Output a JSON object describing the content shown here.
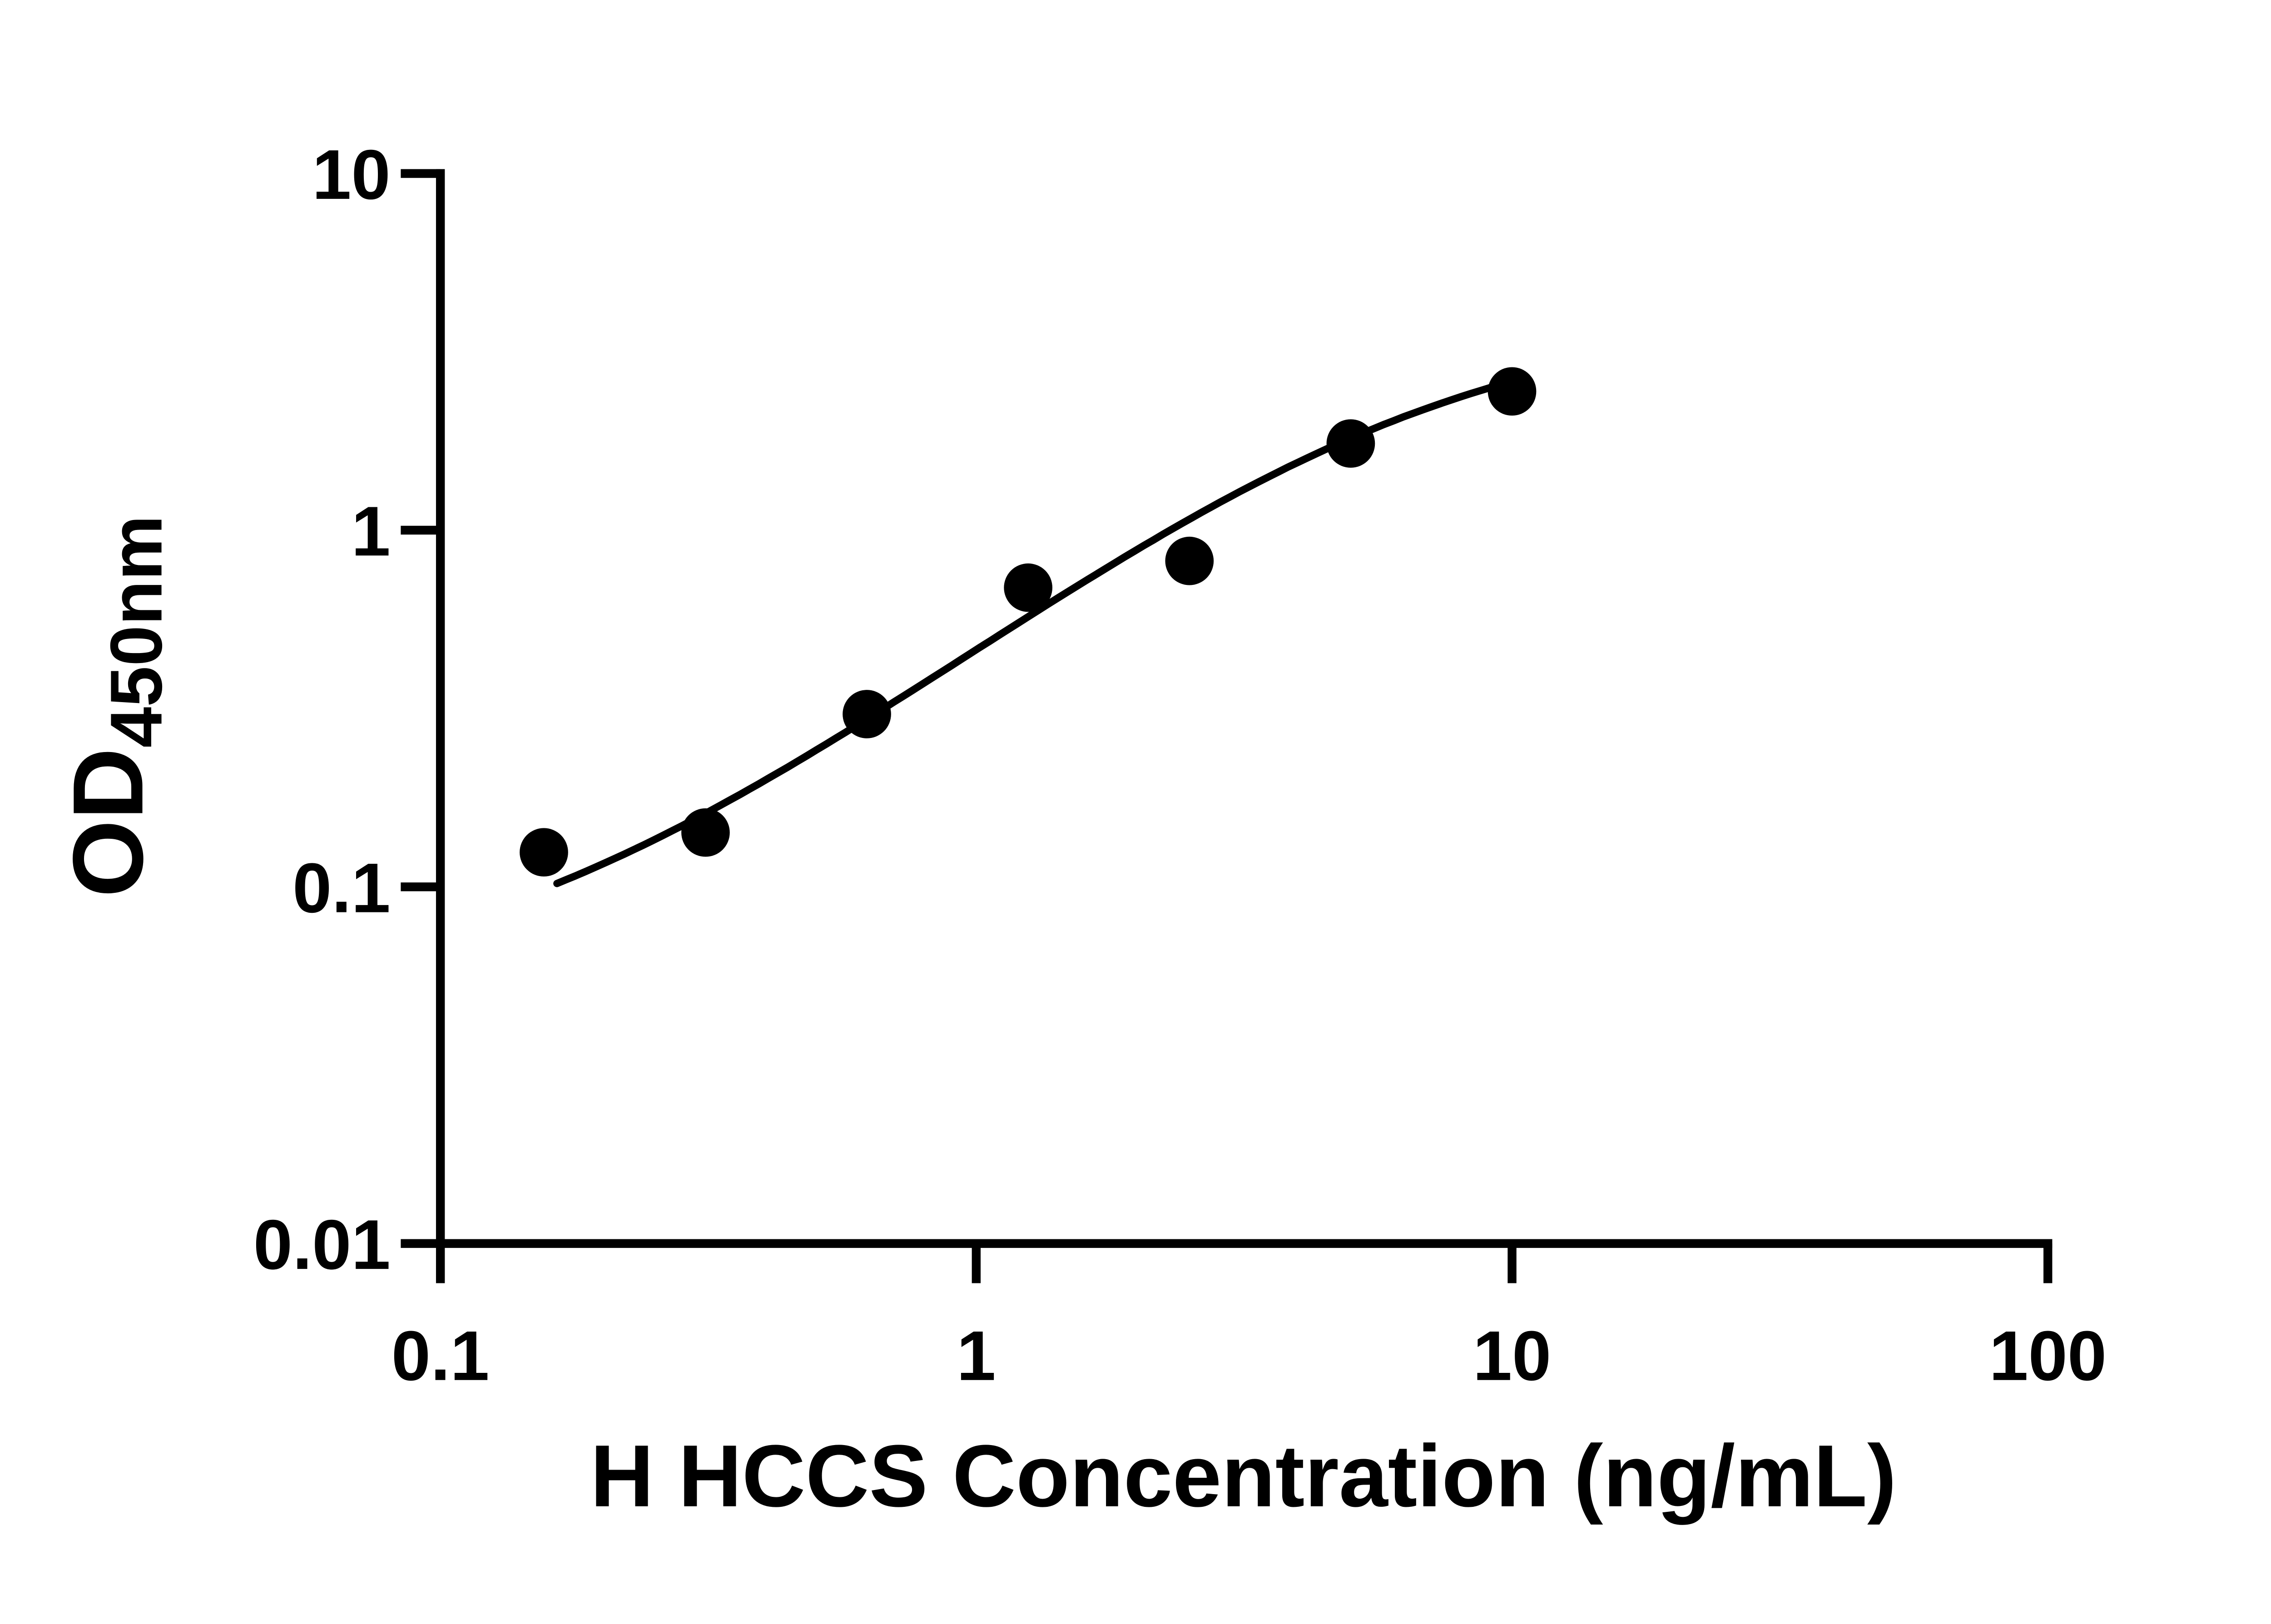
{
  "chart_data": {
    "type": "scatter",
    "x": [
      0.156,
      0.3125,
      0.625,
      1.25,
      2.5,
      5,
      10
    ],
    "y": [
      0.125,
      0.142,
      0.305,
      0.69,
      0.82,
      1.75,
      2.45
    ],
    "xlabel": "H HCCS Concentration (ng/mL)",
    "ylabel_main": "OD",
    "ylabel_sub": "450nm",
    "xscale": "log",
    "yscale": "log",
    "xlim": [
      0.1,
      100
    ],
    "ylim": [
      0.01,
      10
    ],
    "x_ticks": [
      {
        "value": 0.1,
        "label": "0.1"
      },
      {
        "value": 1,
        "label": "1"
      },
      {
        "value": 10,
        "label": "10"
      },
      {
        "value": 100,
        "label": "100"
      }
    ],
    "y_ticks": [
      {
        "value": 10,
        "label": "10"
      },
      {
        "value": 1,
        "label": "1"
      },
      {
        "value": 0.1,
        "label": "0.1"
      },
      {
        "value": 0.01,
        "label": "0.01"
      }
    ],
    "fit_curve": {
      "model": "4PL",
      "a": 0.05,
      "b": 1.2,
      "c": 6.0,
      "d": 4.0,
      "x_start": 0.165,
      "x_end": 10.3
    },
    "grid": false,
    "legend": false,
    "marker_shape": "circle",
    "marker_color": "#000000",
    "line_color": "#000000",
    "axis_color": "#000000",
    "background": "#ffffff"
  }
}
